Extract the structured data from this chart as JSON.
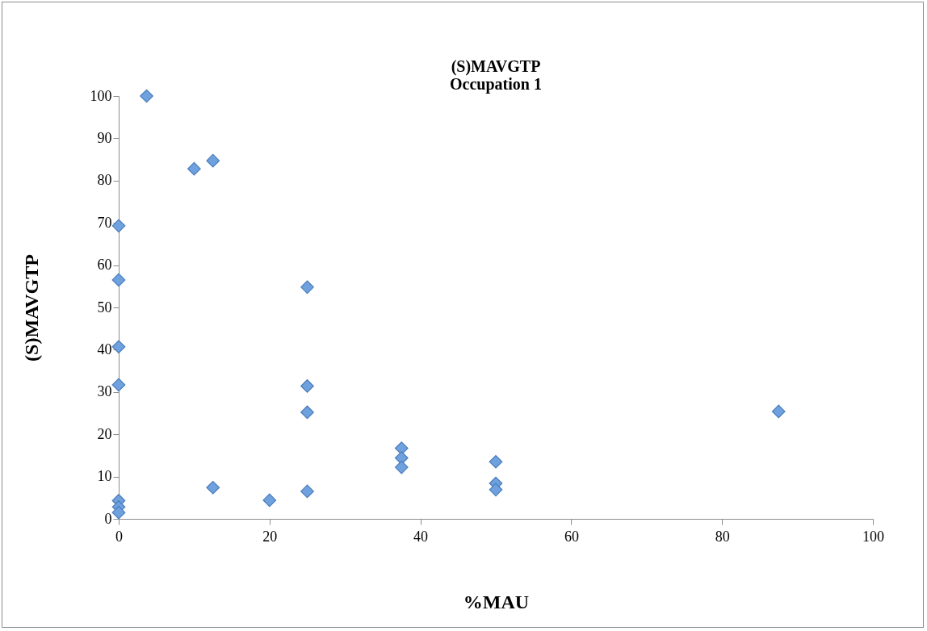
{
  "chart_data": {
    "type": "scatter",
    "title": "(S)MAVGTP\nOccupation 1",
    "xlabel": "%MAU",
    "ylabel": "(S)MAVGTP",
    "x": [
      3.7,
      10,
      12.5,
      0,
      0,
      0,
      0,
      0,
      0,
      0,
      25,
      25,
      25,
      25,
      12.5,
      20,
      37.5,
      37.5,
      37.5,
      50,
      50,
      50,
      87.5
    ],
    "series": [
      {
        "color": "#6fa1de",
        "values": [
          100,
          82.8,
          84.7,
          69.3,
          56.5,
          40.7,
          31.7,
          4.3,
          2.8,
          1.5,
          54.8,
          31.4,
          25.2,
          6.5,
          7.4,
          4.4,
          16.7,
          14.4,
          12.2,
          13.5,
          8.4,
          6.9,
          25.4
        ]
      }
    ],
    "xlim": [
      0,
      100
    ],
    "ylim": [
      0,
      100
    ],
    "xticks": [
      0,
      20,
      40,
      60,
      80,
      100
    ],
    "yticks": [
      0,
      10,
      20,
      30,
      40,
      50,
      60,
      70,
      80,
      90,
      100
    ],
    "marker": "diamond",
    "grid": false
  }
}
